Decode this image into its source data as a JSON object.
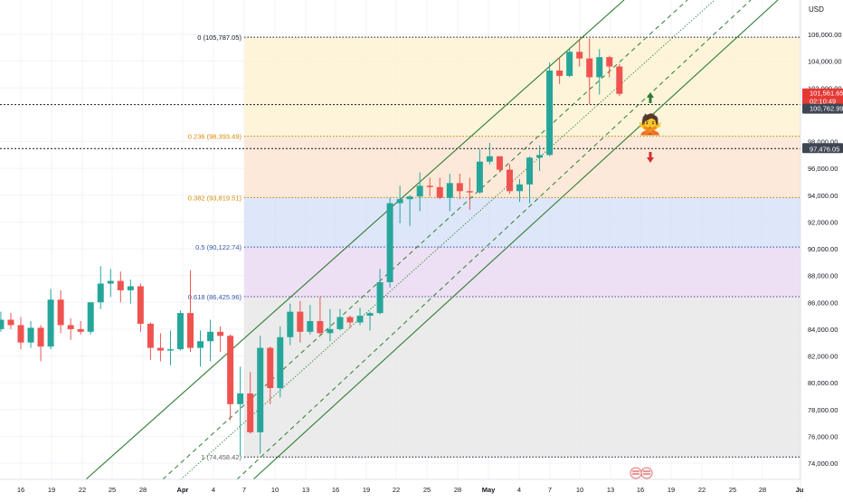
{
  "chart_data": {
    "type": "candlestick",
    "currency": "USD",
    "x_axis_ticks": [
      "16",
      "19",
      "22",
      "25",
      "28",
      "Apr",
      "4",
      "7",
      "10",
      "13",
      "16",
      "19",
      "22",
      "25",
      "28",
      "May",
      "4",
      "7",
      "10",
      "13",
      "16",
      "19",
      "22",
      "25",
      "28",
      "Ju"
    ],
    "y_axis_ticks": [
      "74,000.00",
      "76,000.00",
      "78,000.00",
      "80,000.00",
      "82,000.00",
      "84,000.00",
      "86,000.00",
      "88,000.00",
      "90,000.00",
      "92,000.00",
      "94,000.00",
      "96,000.00",
      "98,000.00",
      "102,000.00",
      "104,000.00",
      "106,000.00"
    ],
    "ylim": [
      73100,
      107000
    ],
    "fibonacci": [
      {
        "label": "0 (105,787.05)",
        "level": 0,
        "price": 105787.05
      },
      {
        "label": "0.236 (98,393.49)",
        "level": 0.236,
        "price": 98393.49
      },
      {
        "label": "0.382 (93,819.51)",
        "level": 0.382,
        "price": 93819.51
      },
      {
        "label": "0.5 (90,122.74)",
        "level": 0.5,
        "price": 90122.74
      },
      {
        "label": "0.618 (86,425.96)",
        "level": 0.618,
        "price": 86425.96
      },
      {
        "label": "1 (74,458.42)",
        "level": 1,
        "price": 74458.42
      }
    ],
    "fib_zone_colors": [
      "#fdf1d1",
      "#fde3cf",
      "#d6e0f7",
      "#ead8f1",
      "#e6e6e6"
    ],
    "price_labels": [
      {
        "text": "101,561.65",
        "price": 101561.65,
        "color": "#e53935"
      },
      {
        "text": "02:10:49",
        "price": 101561.65,
        "color": "#e53935"
      },
      {
        "text": "100,762.99",
        "price": 100762.99,
        "color": "#3e4653"
      },
      {
        "text": "97,476.05",
        "price": 97476.05,
        "color": "#3e4653"
      }
    ],
    "horizontal_lines": [
      100762.99,
      97476.05
    ],
    "up_color": "#26a69a",
    "down_color": "#ef5350",
    "channel_color": "#2e7d32",
    "candles": [
      {
        "x": "2025-03-13",
        "o": 83300,
        "h": 84500,
        "l": 82300,
        "c": 84000
      },
      {
        "x": "2025-03-14",
        "o": 84000,
        "h": 85300,
        "l": 83800,
        "c": 84700
      },
      {
        "x": "2025-03-15",
        "o": 84700,
        "h": 85200,
        "l": 84000,
        "c": 84300
      },
      {
        "x": "2025-03-16",
        "o": 84300,
        "h": 84900,
        "l": 82500,
        "c": 83000
      },
      {
        "x": "2025-03-17",
        "o": 83000,
        "h": 84600,
        "l": 82600,
        "c": 84100
      },
      {
        "x": "2025-03-18",
        "o": 84100,
        "h": 84300,
        "l": 81600,
        "c": 82700
      },
      {
        "x": "2025-03-19",
        "o": 82700,
        "h": 87000,
        "l": 82500,
        "c": 86200
      },
      {
        "x": "2025-03-20",
        "o": 86200,
        "h": 86900,
        "l": 83700,
        "c": 84300
      },
      {
        "x": "2025-03-21",
        "o": 84300,
        "h": 84800,
        "l": 83200,
        "c": 84000
      },
      {
        "x": "2025-03-22",
        "o": 84000,
        "h": 84600,
        "l": 83600,
        "c": 83800
      },
      {
        "x": "2025-03-23",
        "o": 83800,
        "h": 86000,
        "l": 83600,
        "c": 86000
      },
      {
        "x": "2025-03-24",
        "o": 86000,
        "h": 88700,
        "l": 85500,
        "c": 87400
      },
      {
        "x": "2025-03-25",
        "o": 87400,
        "h": 88500,
        "l": 86400,
        "c": 87600
      },
      {
        "x": "2025-03-26",
        "o": 87600,
        "h": 88300,
        "l": 86000,
        "c": 86900
      },
      {
        "x": "2025-03-27",
        "o": 86900,
        "h": 87700,
        "l": 85900,
        "c": 87200
      },
      {
        "x": "2025-03-28",
        "o": 87200,
        "h": 87400,
        "l": 83800,
        "c": 84400
      },
      {
        "x": "2025-03-29",
        "o": 84400,
        "h": 84500,
        "l": 81700,
        "c": 82600
      },
      {
        "x": "2025-03-30",
        "o": 82600,
        "h": 83700,
        "l": 81600,
        "c": 82400
      },
      {
        "x": "2025-03-31",
        "o": 82400,
        "h": 83900,
        "l": 81300,
        "c": 82500
      },
      {
        "x": "2025-04-01",
        "o": 82500,
        "h": 85400,
        "l": 82400,
        "c": 85200
      },
      {
        "x": "2025-04-02",
        "o": 85200,
        "h": 88400,
        "l": 82300,
        "c": 82600
      },
      {
        "x": "2025-04-03",
        "o": 82600,
        "h": 83900,
        "l": 81200,
        "c": 83100
      },
      {
        "x": "2025-04-04",
        "o": 83100,
        "h": 84700,
        "l": 81600,
        "c": 83800
      },
      {
        "x": "2025-04-05",
        "o": 83800,
        "h": 84200,
        "l": 82300,
        "c": 83500
      },
      {
        "x": "2025-04-06",
        "o": 83500,
        "h": 83600,
        "l": 77200,
        "c": 78400
      },
      {
        "x": "2025-04-07",
        "o": 78400,
        "h": 81200,
        "l": 74500,
        "c": 79200
      },
      {
        "x": "2025-04-08",
        "o": 79200,
        "h": 80800,
        "l": 76200,
        "c": 76300
      },
      {
        "x": "2025-04-09",
        "o": 76300,
        "h": 83500,
        "l": 74700,
        "c": 82600
      },
      {
        "x": "2025-04-10",
        "o": 82600,
        "h": 82700,
        "l": 78400,
        "c": 79600
      },
      {
        "x": "2025-04-11",
        "o": 79600,
        "h": 84200,
        "l": 78900,
        "c": 83400
      },
      {
        "x": "2025-04-12",
        "o": 83400,
        "h": 85900,
        "l": 82800,
        "c": 85300
      },
      {
        "x": "2025-04-13",
        "o": 85300,
        "h": 86100,
        "l": 83000,
        "c": 83800
      },
      {
        "x": "2025-04-14",
        "o": 83800,
        "h": 85800,
        "l": 83600,
        "c": 84600
      },
      {
        "x": "2025-04-15",
        "o": 84600,
        "h": 86400,
        "l": 83600,
        "c": 83700
      },
      {
        "x": "2025-04-16",
        "o": 83700,
        "h": 85500,
        "l": 83100,
        "c": 84000
      },
      {
        "x": "2025-04-17",
        "o": 84000,
        "h": 85500,
        "l": 83900,
        "c": 84900
      },
      {
        "x": "2025-04-18",
        "o": 84900,
        "h": 85000,
        "l": 84100,
        "c": 84500
      },
      {
        "x": "2025-04-19",
        "o": 84500,
        "h": 85600,
        "l": 84300,
        "c": 85000
      },
      {
        "x": "2025-04-20",
        "o": 85000,
        "h": 85300,
        "l": 83900,
        "c": 85200
      },
      {
        "x": "2025-04-21",
        "o": 85200,
        "h": 88500,
        "l": 85100,
        "c": 87500
      },
      {
        "x": "2025-04-22",
        "o": 87500,
        "h": 93800,
        "l": 87100,
        "c": 93400
      },
      {
        "x": "2025-04-23",
        "o": 93400,
        "h": 94700,
        "l": 91900,
        "c": 93700
      },
      {
        "x": "2025-04-24",
        "o": 93700,
        "h": 94000,
        "l": 91700,
        "c": 93900
      },
      {
        "x": "2025-04-25",
        "o": 93900,
        "h": 95700,
        "l": 92800,
        "c": 94700
      },
      {
        "x": "2025-04-26",
        "o": 94700,
        "h": 95300,
        "l": 93900,
        "c": 94600
      },
      {
        "x": "2025-04-27",
        "o": 94600,
        "h": 95300,
        "l": 93700,
        "c": 93800
      },
      {
        "x": "2025-04-28",
        "o": 93800,
        "h": 95600,
        "l": 92800,
        "c": 94900
      },
      {
        "x": "2025-04-29",
        "o": 94900,
        "h": 95600,
        "l": 93700,
        "c": 94300
      },
      {
        "x": "2025-04-30",
        "o": 94300,
        "h": 95300,
        "l": 92900,
        "c": 94200
      },
      {
        "x": "2025-05-01",
        "o": 94200,
        "h": 97400,
        "l": 94100,
        "c": 96500
      },
      {
        "x": "2025-05-02",
        "o": 96500,
        "h": 97900,
        "l": 96300,
        "c": 96900
      },
      {
        "x": "2025-05-03",
        "o": 96900,
        "h": 96900,
        "l": 95700,
        "c": 95900
      },
      {
        "x": "2025-05-04",
        "o": 95900,
        "h": 96300,
        "l": 94100,
        "c": 94300
      },
      {
        "x": "2025-05-05",
        "o": 94300,
        "h": 95200,
        "l": 93500,
        "c": 94800
      },
      {
        "x": "2025-05-06",
        "o": 94800,
        "h": 96900,
        "l": 93400,
        "c": 96800
      },
      {
        "x": "2025-05-07",
        "o": 96800,
        "h": 97700,
        "l": 95800,
        "c": 97000
      },
      {
        "x": "2025-05-08",
        "o": 97000,
        "h": 103900,
        "l": 96900,
        "c": 103300
      },
      {
        "x": "2025-05-09",
        "o": 103300,
        "h": 104300,
        "l": 102300,
        "c": 102900
      },
      {
        "x": "2025-05-10",
        "o": 102900,
        "h": 104900,
        "l": 102800,
        "c": 104700
      },
      {
        "x": "2025-05-11",
        "o": 104700,
        "h": 105600,
        "l": 103600,
        "c": 104200
      },
      {
        "x": "2025-05-12",
        "o": 104200,
        "h": 105700,
        "l": 100800,
        "c": 102800
      },
      {
        "x": "2025-05-13",
        "o": 102800,
        "h": 104900,
        "l": 101500,
        "c": 104300
      },
      {
        "x": "2025-05-14",
        "o": 104300,
        "h": 104400,
        "l": 102800,
        "c": 103600
      },
      {
        "x": "2025-05-15",
        "o": 103600,
        "h": 103800,
        "l": 101400,
        "c": 101560
      }
    ]
  }
}
